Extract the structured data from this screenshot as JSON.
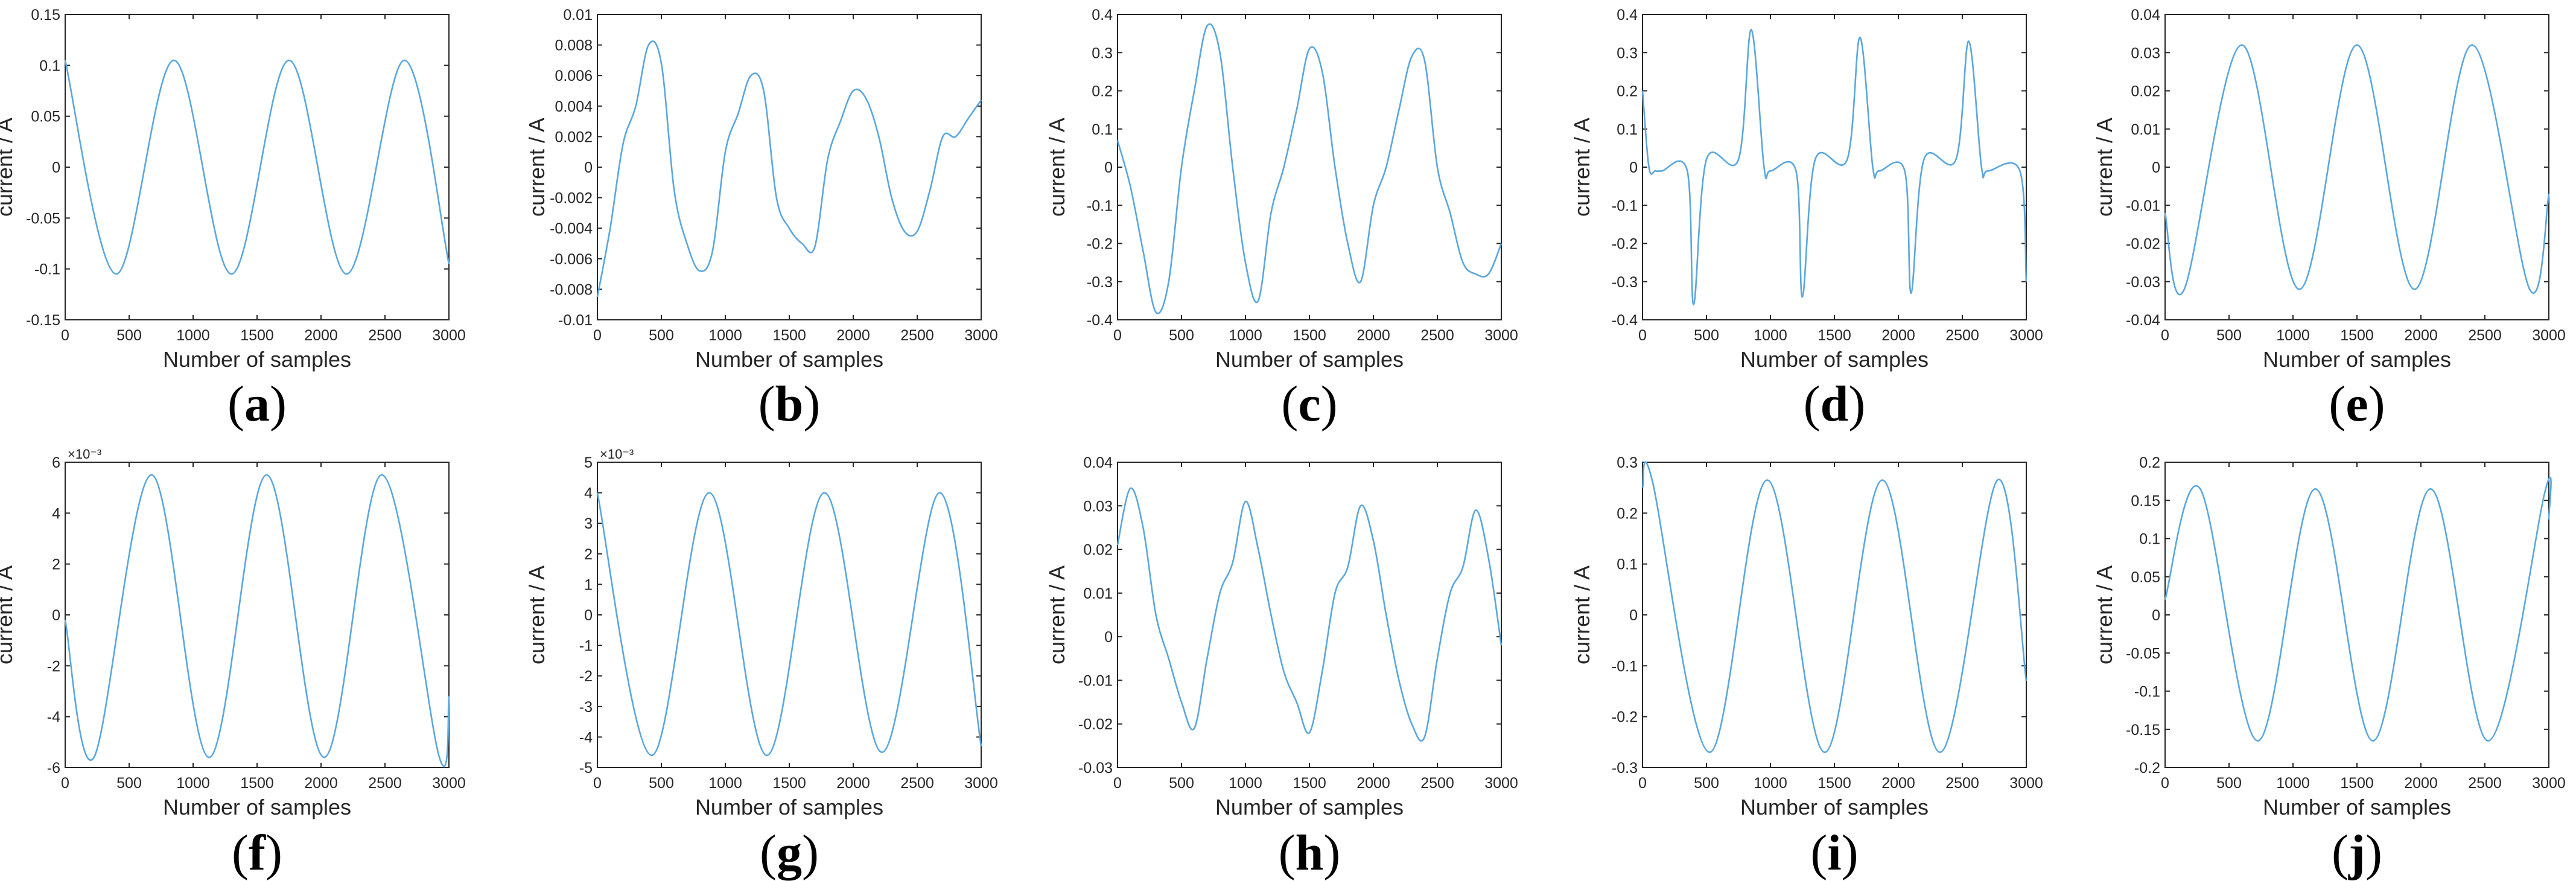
{
  "colors": {
    "line": "#5aa7dd",
    "axis": "#262626",
    "text": "#262626"
  },
  "chart_data": [
    {
      "type": "line",
      "label": "a",
      "xlabel": "Number of samples",
      "ylabel": "current / A",
      "xlim": [
        0,
        3000
      ],
      "ylim": [
        -0.15,
        0.15
      ],
      "xticks": [
        "0",
        "500",
        "1000",
        "1500",
        "2000",
        "2500",
        "3000"
      ],
      "yticks": [
        "-0.15",
        "-0.1",
        "-0.05",
        "0",
        "0.05",
        "0.1",
        "0.15"
      ],
      "exponent": "",
      "series": [
        {
          "x": [
            0,
            400,
            850,
            1300,
            1750,
            2200,
            2650,
            3000
          ],
          "y": [
            0.105,
            -0.105,
            0.105,
            -0.105,
            0.105,
            -0.105,
            0.105,
            -0.095
          ]
        }
      ]
    },
    {
      "type": "line",
      "label": "b",
      "xlabel": "Number of samples",
      "ylabel": "current / A",
      "xlim": [
        0,
        3000
      ],
      "ylim": [
        -0.01,
        0.01
      ],
      "xticks": [
        "0",
        "500",
        "1000",
        "1500",
        "2000",
        "2500",
        "3000"
      ],
      "yticks": [
        "-0.01",
        "-0.008",
        "-0.006",
        "-0.004",
        "-0.002",
        "0",
        "0.002",
        "0.004",
        "0.006",
        "0.008",
        "0.01"
      ],
      "exponent": "",
      "series": [
        {
          "x": [
            0,
            100,
            200,
            300,
            400,
            500,
            600,
            700,
            800,
            900,
            1000,
            1100,
            1200,
            1300,
            1400,
            1500,
            1600,
            1700,
            1800,
            1900,
            2000,
            2100,
            2200,
            2300,
            2400,
            2500,
            2600,
            2700,
            2800,
            2900,
            3000
          ],
          "y": [
            -0.0085,
            -0.004,
            0.0015,
            0.004,
            0.008,
            0.0068,
            -0.0015,
            -0.005,
            -0.0068,
            -0.0055,
            0.001,
            0.0035,
            0.006,
            0.005,
            -0.002,
            -0.004,
            -0.005,
            -0.0052,
            0.0005,
            0.003,
            0.005,
            0.0045,
            0.002,
            -0.002,
            -0.0042,
            -0.0042,
            -0.0015,
            0.002,
            0.002,
            0.0032,
            0.0044
          ]
        }
      ]
    },
    {
      "type": "line",
      "label": "c",
      "xlabel": "Number of samples",
      "ylabel": "current / A",
      "xlim": [
        0,
        3000
      ],
      "ylim": [
        -0.4,
        0.4
      ],
      "xticks": [
        "0",
        "500",
        "1000",
        "1500",
        "2000",
        "2500",
        "3000"
      ],
      "yticks": [
        "-0.4",
        "-0.3",
        "-0.2",
        "-0.1",
        "0",
        "0.1",
        "0.2",
        "0.3",
        "0.4"
      ],
      "exponent": "",
      "series": [
        {
          "x": [
            0,
            100,
            200,
            300,
            400,
            500,
            600,
            700,
            800,
            900,
            1000,
            1100,
            1200,
            1300,
            1400,
            1500,
            1600,
            1700,
            1800,
            1900,
            2000,
            2100,
            2200,
            2300,
            2400,
            2500,
            2600,
            2700,
            2800,
            2900,
            3000
          ],
          "y": [
            0.07,
            -0.05,
            -0.22,
            -0.38,
            -0.3,
            0,
            0.2,
            0.37,
            0.3,
            0,
            -0.25,
            -0.35,
            -0.12,
            0,
            0.15,
            0.31,
            0.25,
            0,
            -0.2,
            -0.3,
            -0.1,
            0,
            0.15,
            0.29,
            0.28,
            0,
            -0.12,
            -0.25,
            -0.28,
            -0.28,
            -0.2
          ]
        }
      ]
    },
    {
      "type": "line",
      "label": "d",
      "xlabel": "Number of samples",
      "ylabel": "current / A",
      "xlim": [
        0,
        3000
      ],
      "ylim": [
        -0.4,
        0.4
      ],
      "xticks": [
        "0",
        "500",
        "1000",
        "1500",
        "2000",
        "2500",
        "3000"
      ],
      "yticks": [
        "-0.4",
        "-0.3",
        "-0.2",
        "-0.1",
        "0",
        "0.1",
        "0.2",
        "0.3",
        "0.4"
      ],
      "exponent": "",
      "series": [
        {
          "x": [
            0,
            50,
            100,
            150,
            350,
            400,
            500,
            750,
            850,
            950,
            1000,
            1200,
            1250,
            1350,
            1600,
            1700,
            1800,
            1850,
            2050,
            2100,
            2200,
            2450,
            2550,
            2650,
            2700,
            2950,
            3000
          ],
          "y": [
            0.2,
            0,
            -0.01,
            -0.01,
            -0.01,
            -0.36,
            0.02,
            0.02,
            0.36,
            0,
            -0.01,
            -0.01,
            -0.34,
            0.02,
            0.02,
            0.34,
            0,
            -0.01,
            -0.01,
            -0.33,
            0.02,
            0.02,
            0.33,
            0,
            -0.01,
            -0.01,
            -0.3
          ]
        }
      ]
    },
    {
      "type": "line",
      "label": "e",
      "xlabel": "Number of samples",
      "ylabel": "current / A",
      "xlim": [
        0,
        3000
      ],
      "ylim": [
        -0.04,
        0.04
      ],
      "xticks": [
        "0",
        "500",
        "1000",
        "1500",
        "2000",
        "2500",
        "3000"
      ],
      "yticks": [
        "-0.04",
        "-0.03",
        "-0.02",
        "-0.01",
        "0",
        "0.01",
        "0.02",
        "0.03",
        "0.04"
      ],
      "exponent": "",
      "series": [
        {
          "x": [
            0,
            150,
            600,
            1050,
            1500,
            1950,
            2400,
            2850,
            3000
          ],
          "y": [
            -0.012,
            -0.032,
            0.032,
            -0.032,
            0.032,
            -0.032,
            0.032,
            -0.032,
            -0.007
          ]
        }
      ]
    },
    {
      "type": "line",
      "label": "f",
      "xlabel": "Number of samples",
      "ylabel": "current / A",
      "xlim": [
        0,
        3000
      ],
      "ylim": [
        -6,
        6
      ],
      "xticks": [
        "0",
        "500",
        "1000",
        "1500",
        "2000",
        "2500",
        "3000"
      ],
      "yticks": [
        "-6",
        "-4",
        "-2",
        "0",
        "2",
        "4",
        "6"
      ],
      "exponent": "×10⁻³",
      "series": [
        {
          "x": [
            0,
            225,
            675,
            1125,
            1575,
            2025,
            2475,
            2925,
            3000
          ],
          "y": [
            -0.2,
            -5.6,
            5.5,
            -5.6,
            5.5,
            -5.6,
            5.5,
            -5.6,
            -3.2
          ]
        }
      ]
    },
    {
      "type": "line",
      "label": "g",
      "xlabel": "Number of samples",
      "ylabel": "current / A",
      "xlim": [
        0,
        3000
      ],
      "ylim": [
        -5,
        5
      ],
      "xticks": [
        "0",
        "500",
        "1000",
        "1500",
        "2000",
        "2500",
        "3000"
      ],
      "yticks": [
        "-5",
        "-4",
        "-3",
        "-2",
        "-1",
        "0",
        "1",
        "2",
        "3",
        "4",
        "5"
      ],
      "exponent": "×10⁻³",
      "series": [
        {
          "x": [
            0,
            425,
            875,
            1325,
            1775,
            2225,
            2675,
            3000
          ],
          "y": [
            4,
            -4.6,
            4,
            -4.6,
            4,
            -4.5,
            4,
            -4.3
          ]
        }
      ]
    },
    {
      "type": "line",
      "label": "h",
      "xlabel": "Number of samples",
      "ylabel": "current / A",
      "xlim": [
        0,
        3000
      ],
      "ylim": [
        -0.03,
        0.04
      ],
      "xticks": [
        "0",
        "500",
        "1000",
        "1500",
        "2000",
        "2500",
        "3000"
      ],
      "yticks": [
        "-0.03",
        "-0.02",
        "-0.01",
        "0",
        "0.01",
        "0.02",
        "0.03",
        "0.04"
      ],
      "exponent": "",
      "series": [
        {
          "x": [
            0,
            100,
            200,
            300,
            400,
            500,
            600,
            700,
            800,
            900,
            1000,
            1100,
            1200,
            1300,
            1400,
            1500,
            1600,
            1700,
            1800,
            1900,
            2000,
            2100,
            2200,
            2300,
            2400,
            2500,
            2600,
            2700,
            2800,
            2900,
            3000
          ],
          "y": [
            0.021,
            0.034,
            0.025,
            0.005,
            -0.005,
            -0.015,
            -0.021,
            -0.005,
            0.01,
            0.017,
            0.031,
            0.02,
            0.005,
            -0.008,
            -0.015,
            -0.022,
            -0.008,
            0.01,
            0.016,
            0.03,
            0.022,
            0.005,
            -0.01,
            -0.02,
            -0.023,
            -0.005,
            0.01,
            0.016,
            0.029,
            0.018,
            -0.002
          ]
        }
      ]
    },
    {
      "type": "line",
      "label": "i",
      "xlabel": "Number of samples",
      "ylabel": "current / A",
      "xlim": [
        0,
        3000
      ],
      "ylim": [
        -0.3,
        0.3
      ],
      "xticks": [
        "0",
        "500",
        "1000",
        "1500",
        "2000",
        "2500",
        "3000"
      ],
      "yticks": [
        "-0.3",
        "-0.2",
        "-0.1",
        "0",
        "0.1",
        "0.2",
        "0.3"
      ],
      "exponent": "",
      "series": [
        {
          "x": [
            0,
            75,
            525,
            975,
            1425,
            1875,
            2325,
            2775,
            3000
          ],
          "y": [
            0.25,
            0.265,
            -0.27,
            0.265,
            -0.27,
            0.265,
            -0.27,
            0.265,
            -0.13
          ]
        }
      ]
    },
    {
      "type": "line",
      "label": "j",
      "xlabel": "Number of samples",
      "ylabel": "current / A",
      "xlim": [
        0,
        3000
      ],
      "ylim": [
        -0.2,
        0.2
      ],
      "xticks": [
        "0",
        "500",
        "1000",
        "1500",
        "2000",
        "2500",
        "3000"
      ],
      "yticks": [
        "-0.2",
        "-0.15",
        "-0.1",
        "-0.05",
        "0",
        "0.05",
        "0.1",
        "0.15",
        "0.2"
      ],
      "exponent": "",
      "series": [
        {
          "x": [
            0,
            275,
            725,
            1175,
            1625,
            2075,
            2525,
            2975,
            3000
          ],
          "y": [
            0.02,
            0.165,
            -0.165,
            0.165,
            -0.165,
            0.165,
            -0.165,
            0.165,
            0.125
          ]
        }
      ]
    }
  ]
}
